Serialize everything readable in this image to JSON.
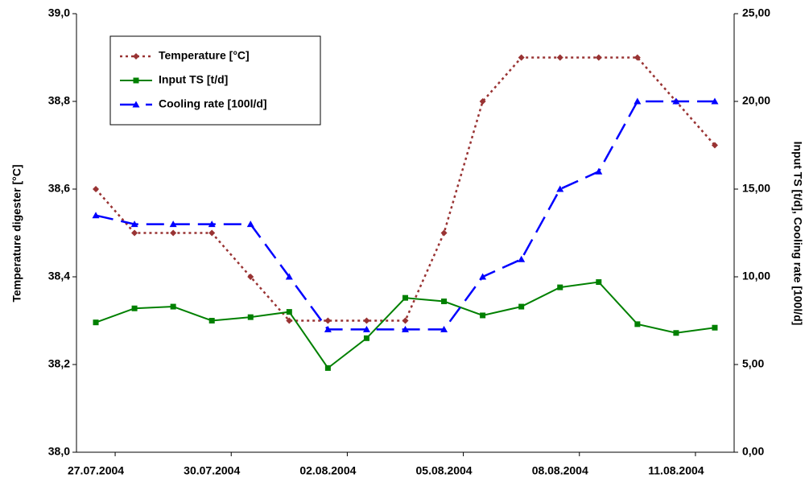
{
  "chart_data": {
    "type": "line",
    "categories": [
      "27.07.2004",
      null,
      null,
      "30.07.2004",
      null,
      null,
      "02.08.2004",
      null,
      null,
      "05.08.2004",
      null,
      null,
      "08.08.2004",
      null,
      null,
      "11.08.2004",
      null
    ],
    "ylabel": "Temperature digester [°C]",
    "y2label": "Input TS [t/d], Cooling rate [100l/d]",
    "ylim": [
      38.0,
      39.0
    ],
    "yticks": [
      {
        "value": 38.0,
        "label": "38,0"
      },
      {
        "value": 38.2,
        "label": "38,2"
      },
      {
        "value": 38.4,
        "label": "38,4"
      },
      {
        "value": 38.6,
        "label": "38,6"
      },
      {
        "value": 38.8,
        "label": "38,8"
      },
      {
        "value": 39.0,
        "label": "39,0"
      }
    ],
    "y2lim": [
      0,
      25
    ],
    "y2ticks": [
      {
        "value": 0,
        "label": "0,00"
      },
      {
        "value": 5,
        "label": "5,00"
      },
      {
        "value": 10,
        "label": "10,00"
      },
      {
        "value": 15,
        "label": "15,00"
      },
      {
        "value": 20,
        "label": "20,00"
      },
      {
        "value": 25,
        "label": "25,00"
      }
    ],
    "legend": "upper left",
    "series": [
      {
        "name": "Temperature [°C]",
        "color": "#993333",
        "values": [
          38.6,
          38.5,
          38.5,
          38.5,
          38.4,
          38.3,
          38.3,
          38.3,
          38.3,
          38.5,
          38.8,
          38.9,
          38.9,
          38.9,
          38.9,
          38.8,
          38.7
        ]
      },
      {
        "name": "Input TS [t/d]",
        "color": "#008000",
        "axis": "y2",
        "values": [
          7.4,
          8.2,
          8.3,
          7.5,
          7.7,
          8.0,
          4.8,
          6.5,
          8.8,
          8.6,
          7.8,
          8.3,
          9.4,
          9.7,
          7.3,
          6.8,
          7.1
        ]
      },
      {
        "name": "Cooling rate [100l/d]",
        "color": "#0000ff",
        "axis": "y2",
        "values": [
          13.5,
          13,
          13,
          13,
          13,
          10,
          7,
          7,
          7,
          7,
          10,
          11,
          15,
          16,
          20,
          20,
          20
        ]
      }
    ]
  }
}
